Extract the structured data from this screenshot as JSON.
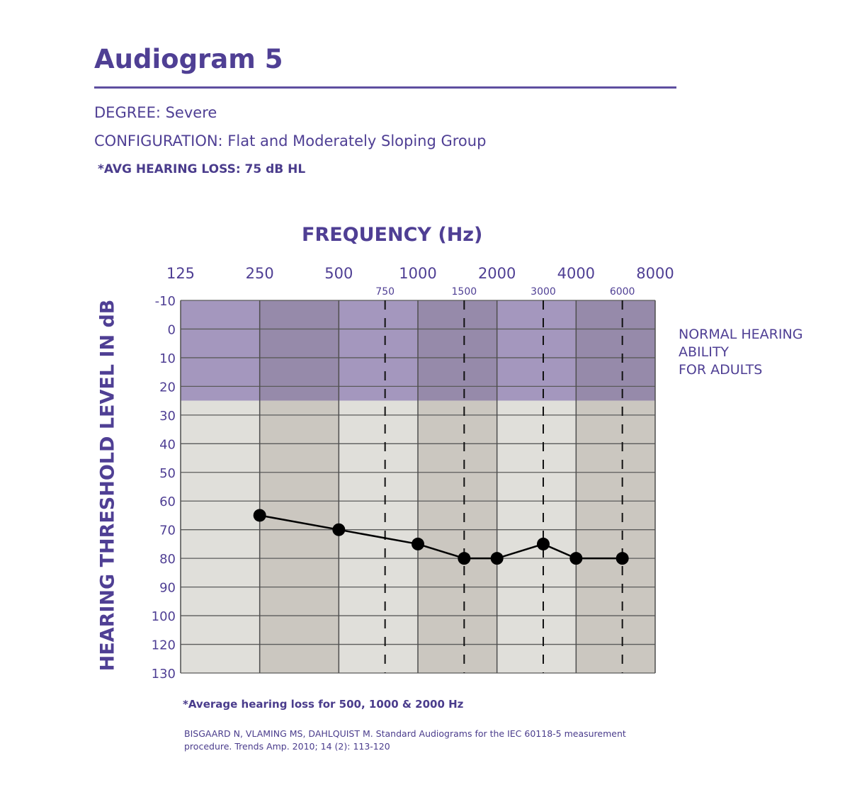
{
  "header": {
    "title": "Audiogram 5",
    "degree": "DEGREE: Severe",
    "configuration": "CONFIGURATION: Flat and Moderately Sloping Group",
    "avg_hearing_loss": "*AVG HEARING LOSS: 75 dB HL"
  },
  "normal_zone_label": [
    "NORMAL HEARING",
    "ABILITY",
    "FOR ADULTS"
  ],
  "footnote": "*Average hearing loss for 500, 1000 & 2000 Hz",
  "reference": [
    "BISGAARD N, VLAMING MS, DAHLQUIST M. Standard Audiograms for the IEC 60118-5 measurement",
    "procedure. Trends Amp. 2010; 14 (2): 113-120"
  ],
  "colors": {
    "brand": "#4f3f94",
    "normal_zone_light": "#a497be",
    "normal_zone_dark": "#968aaa",
    "grid_light": "#e0dfda",
    "grid_dark": "#cbc7c0",
    "line": "#000000"
  },
  "chart_data": {
    "type": "line",
    "xlabel": "FREQUENCY (Hz)",
    "ylabel": "HEARING THRESHOLD LEVEL IN dB",
    "x_scale": "log2",
    "x_major_ticks": [
      125,
      250,
      500,
      1000,
      2000,
      4000,
      8000
    ],
    "x_minor_ticks": [
      750,
      1500,
      3000,
      6000
    ],
    "y_ticks": [
      -10,
      0,
      10,
      20,
      30,
      40,
      50,
      60,
      70,
      80,
      90,
      100,
      120,
      130
    ],
    "y_inverted": true,
    "normal_range": [
      -10,
      25
    ],
    "series": [
      {
        "x": [
          250,
          500,
          1000,
          1500,
          2000,
          3000,
          4000,
          6000
        ],
        "y": [
          65,
          70,
          75,
          80,
          80,
          75,
          80,
          80
        ]
      }
    ]
  }
}
